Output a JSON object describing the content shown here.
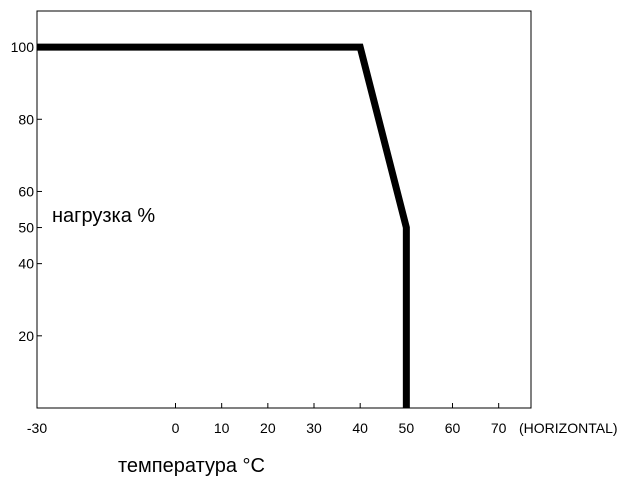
{
  "chart_data": {
    "type": "line",
    "title": "",
    "xlabel": "температура °C",
    "ylabel": "нагрузка %",
    "x_suffix": "(HORIZONTAL)",
    "xlim": [
      -30,
      77
    ],
    "ylim": [
      0,
      110
    ],
    "xticks": [
      -30,
      0,
      10,
      20,
      30,
      40,
      50,
      60,
      70
    ],
    "yticks": [
      20,
      40,
      50,
      60,
      80,
      100
    ],
    "grid": false,
    "series": [
      {
        "color": "#000000",
        "x": [
          -30,
          40,
          50,
          50
        ],
        "y": [
          100,
          100,
          50,
          0
        ]
      }
    ]
  }
}
